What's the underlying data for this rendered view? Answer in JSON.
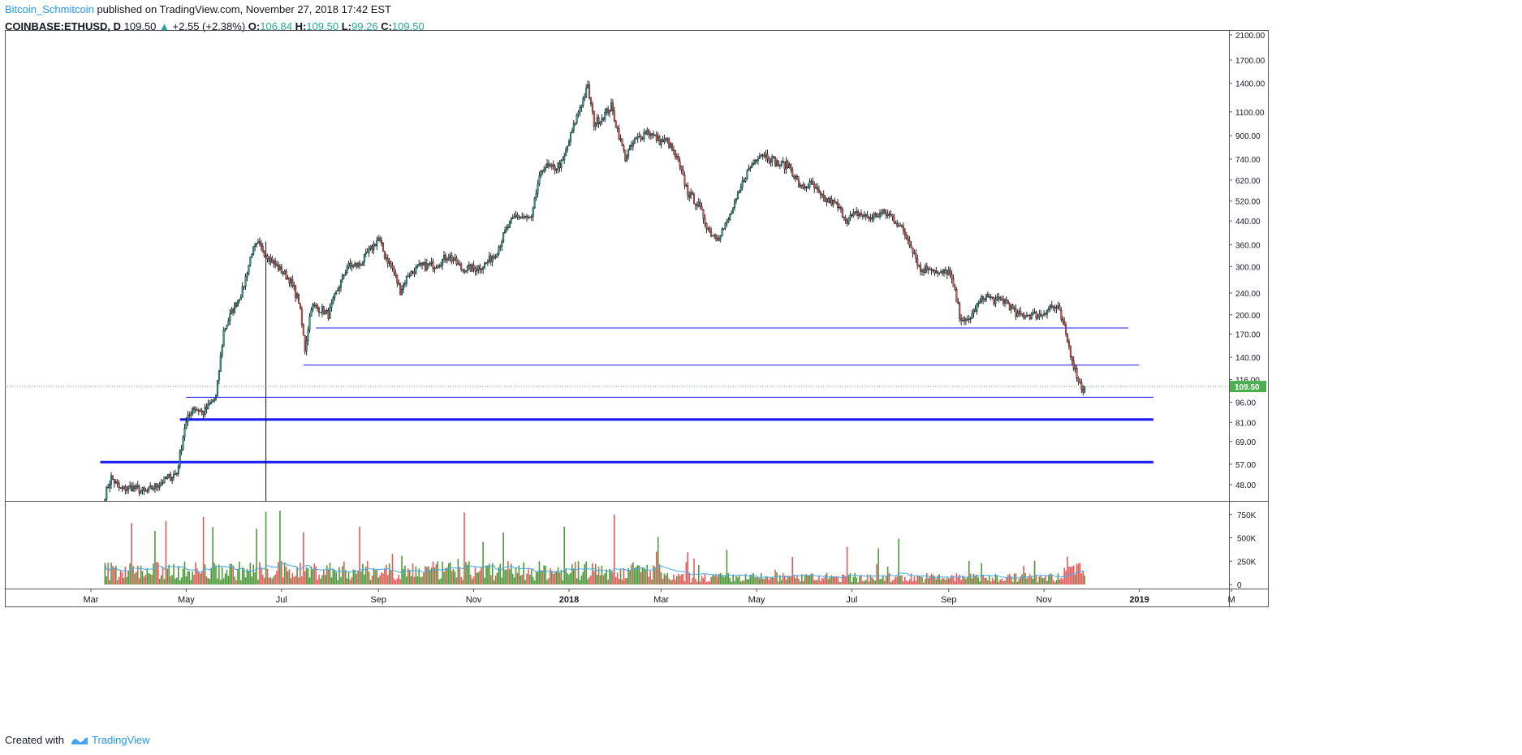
{
  "header": {
    "author": "Bitcoin_Schmitcoin",
    "published_text": "published on TradingView.com, November 27, 2018 17:42 EST",
    "symbol": "COINBASE:ETHUSD, D",
    "last": "109.50",
    "change": "+2.55 (+2.38%)",
    "o_label": "O:",
    "o": "106.84",
    "h_label": "H:",
    "h": "109.50",
    "l_label": "L:",
    "l": "99.26",
    "c_label": "C:",
    "c": "109.50"
  },
  "footer": {
    "created_with": "Created with",
    "brand": "TradingView"
  },
  "chart_data": {
    "type": "candlestick",
    "title": "COINBASE:ETHUSD, D",
    "y_scale": "log",
    "price_ticks": [
      "2100.00",
      "1700.00",
      "1400.00",
      "1100.00",
      "900.00",
      "740.00",
      "620.00",
      "520.00",
      "440.00",
      "360.00",
      "300.00",
      "240.00",
      "200.00",
      "170.00",
      "140.00",
      "116.00",
      "96.00",
      "81.00",
      "69.00",
      "57.00",
      "48.00"
    ],
    "volume_ticks": [
      {
        "label": "750K",
        "v": 750000
      },
      {
        "label": "500K",
        "v": 500000
      },
      {
        "label": "250K",
        "v": 250000
      },
      {
        "label": "0",
        "v": 0
      }
    ],
    "x_ticks": [
      {
        "label": "Mar",
        "date": "2017-03-01"
      },
      {
        "label": "May",
        "date": "2017-05-01"
      },
      {
        "label": "Jul",
        "date": "2017-07-01"
      },
      {
        "label": "Sep",
        "date": "2017-09-01"
      },
      {
        "label": "Nov",
        "date": "2017-11-01"
      },
      {
        "label": "2018",
        "date": "2018-01-01",
        "bold": true
      },
      {
        "label": "Mar",
        "date": "2018-03-01"
      },
      {
        "label": "May",
        "date": "2018-05-01"
      },
      {
        "label": "Jul",
        "date": "2018-07-01"
      },
      {
        "label": "Sep",
        "date": "2018-09-01"
      },
      {
        "label": "Nov",
        "date": "2018-11-01"
      },
      {
        "label": "2019",
        "date": "2019-01-01",
        "bold": true
      },
      {
        "label": "M",
        "date": "2019-03-01"
      }
    ],
    "last_price_label": "109.50",
    "last_price": 109.5,
    "price_path": [
      [
        "2017-03-10",
        44
      ],
      [
        "2017-03-14",
        51
      ],
      [
        "2017-03-20",
        46
      ],
      [
        "2017-03-27",
        47
      ],
      [
        "2017-04-05",
        45
      ],
      [
        "2017-04-15",
        49
      ],
      [
        "2017-04-25",
        53
      ],
      [
        "2017-04-30",
        78
      ],
      [
        "2017-05-05",
        92
      ],
      [
        "2017-05-12",
        88
      ],
      [
        "2017-05-20",
        100
      ],
      [
        "2017-05-25",
        175
      ],
      [
        "2017-05-31",
        210
      ],
      [
        "2017-06-06",
        245
      ],
      [
        "2017-06-12",
        340
      ],
      [
        "2017-06-16",
        360
      ],
      [
        "2017-06-22",
        330
      ],
      [
        "2017-06-28",
        300
      ],
      [
        "2017-07-06",
        270
      ],
      [
        "2017-07-12",
        225
      ],
      [
        "2017-07-16",
        150
      ],
      [
        "2017-07-20",
        215
      ],
      [
        "2017-07-26",
        210
      ],
      [
        "2017-07-31",
        200
      ],
      [
        "2017-08-05",
        240
      ],
      [
        "2017-08-12",
        300
      ],
      [
        "2017-08-20",
        305
      ],
      [
        "2017-08-26",
        340
      ],
      [
        "2017-09-01",
        380
      ],
      [
        "2017-09-05",
        330
      ],
      [
        "2017-09-10",
        295
      ],
      [
        "2017-09-15",
        245
      ],
      [
        "2017-09-20",
        280
      ],
      [
        "2017-09-28",
        300
      ],
      [
        "2017-10-08",
        305
      ],
      [
        "2017-10-16",
        330
      ],
      [
        "2017-10-24",
        295
      ],
      [
        "2017-11-01",
        295
      ],
      [
        "2017-11-08",
        305
      ],
      [
        "2017-11-15",
        335
      ],
      [
        "2017-11-22",
        410
      ],
      [
        "2017-11-28",
        460
      ],
      [
        "2017-12-02",
        455
      ],
      [
        "2017-12-08",
        445
      ],
      [
        "2017-12-12",
        600
      ],
      [
        "2017-12-16",
        700
      ],
      [
        "2017-12-22",
        680
      ],
      [
        "2017-12-28",
        720
      ],
      [
        "2018-01-02",
        900
      ],
      [
        "2018-01-08",
        1150
      ],
      [
        "2018-01-13",
        1350
      ],
      [
        "2018-01-17",
        1000
      ],
      [
        "2018-01-22",
        1050
      ],
      [
        "2018-01-28",
        1150
      ],
      [
        "2018-02-02",
        900
      ],
      [
        "2018-02-06",
        750
      ],
      [
        "2018-02-12",
        860
      ],
      [
        "2018-02-20",
        940
      ],
      [
        "2018-02-28",
        860
      ],
      [
        "2018-03-05",
        860
      ],
      [
        "2018-03-11",
        740
      ],
      [
        "2018-03-18",
        560
      ],
      [
        "2018-03-25",
        500
      ],
      [
        "2018-04-01",
        400
      ],
      [
        "2018-04-06",
        385
      ],
      [
        "2018-04-12",
        430
      ],
      [
        "2018-04-18",
        520
      ],
      [
        "2018-04-24",
        650
      ],
      [
        "2018-05-03",
        780
      ],
      [
        "2018-05-08",
        760
      ],
      [
        "2018-05-15",
        710
      ],
      [
        "2018-05-22",
        700
      ],
      [
        "2018-05-29",
        580
      ],
      [
        "2018-06-05",
        600
      ],
      [
        "2018-06-12",
        530
      ],
      [
        "2018-06-20",
        510
      ],
      [
        "2018-06-28",
        445
      ],
      [
        "2018-07-05",
        470
      ],
      [
        "2018-07-12",
        450
      ],
      [
        "2018-07-20",
        470
      ],
      [
        "2018-07-26",
        460
      ],
      [
        "2018-08-01",
        420
      ],
      [
        "2018-08-08",
        360
      ],
      [
        "2018-08-14",
        290
      ],
      [
        "2018-08-20",
        300
      ],
      [
        "2018-08-26",
        280
      ],
      [
        "2018-09-01",
        290
      ],
      [
        "2018-09-05",
        240
      ],
      [
        "2018-09-08",
        200
      ],
      [
        "2018-09-12",
        185
      ],
      [
        "2018-09-18",
        210
      ],
      [
        "2018-09-24",
        235
      ],
      [
        "2018-10-01",
        225
      ],
      [
        "2018-10-08",
        225
      ],
      [
        "2018-10-14",
        200
      ],
      [
        "2018-10-22",
        200
      ],
      [
        "2018-10-30",
        200
      ],
      [
        "2018-11-05",
        215
      ],
      [
        "2018-11-10",
        210
      ],
      [
        "2018-11-14",
        178
      ],
      [
        "2018-11-18",
        145
      ],
      [
        "2018-11-21",
        125
      ],
      [
        "2018-11-24",
        112
      ],
      [
        "2018-11-26",
        106
      ],
      [
        "2018-11-27",
        109.5
      ]
    ],
    "horizontal_lines": [
      {
        "price": 179,
        "from": "2017-07-23",
        "to": "2018-12-25",
        "width": 1
      },
      {
        "price": 131,
        "from": "2017-07-15",
        "to": "2019-01-01",
        "width": 1
      },
      {
        "price": 100,
        "from": "2017-05-01",
        "to": "2019-01-10",
        "width": 1
      },
      {
        "price": 83,
        "from": "2017-04-27",
        "to": "2019-01-10",
        "width": 3
      },
      {
        "price": 58,
        "from": "2017-03-07",
        "to": "2019-01-10",
        "width": 3
      }
    ],
    "annotations": [
      {
        "type": "vertical",
        "date": "2017-06-21",
        "price": 370
      }
    ],
    "colors": {
      "up": "#26a69a",
      "down": "#ef5350",
      "vol_up": "#4e9a3a",
      "vol_down": "#e35a5a",
      "ma": "#4aa8e8",
      "levels": "#1a1aff",
      "last_price": "#4caf50"
    }
  }
}
